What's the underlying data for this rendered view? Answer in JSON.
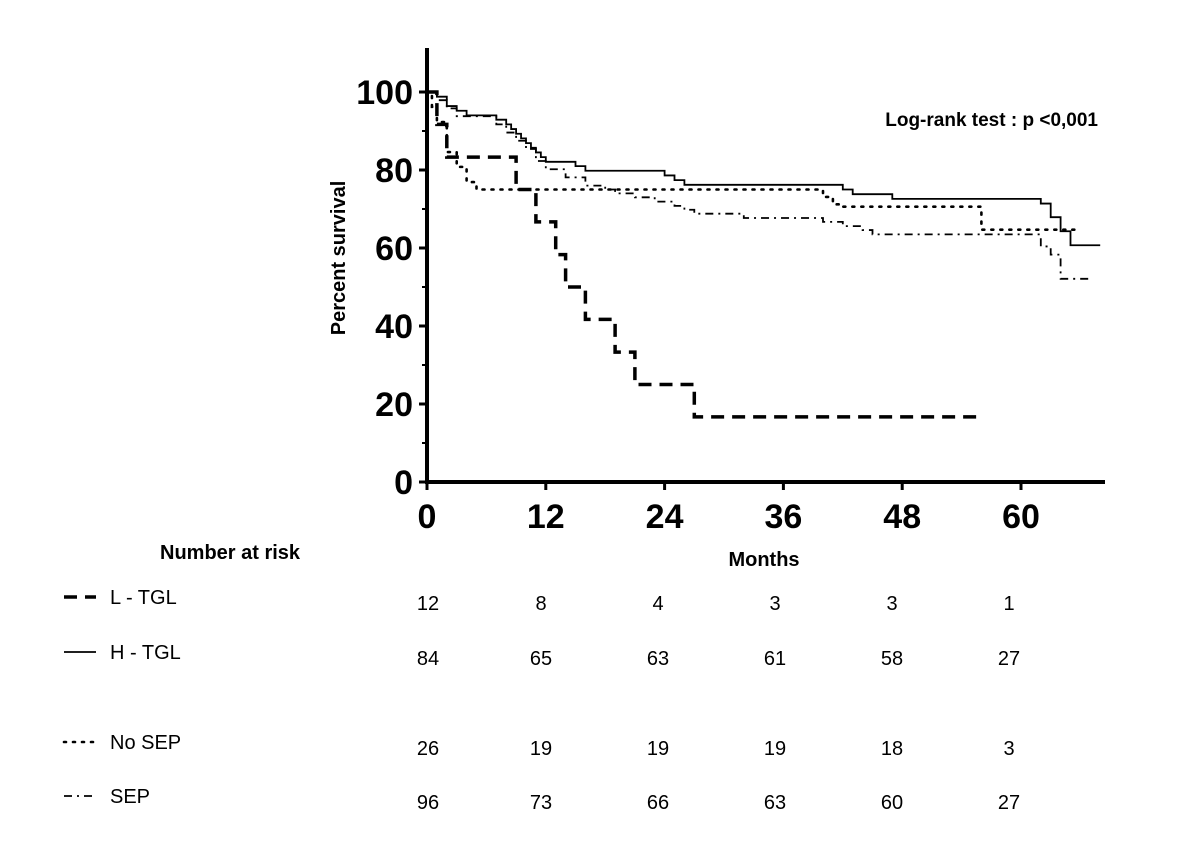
{
  "chart_data": {
    "type": "line",
    "subtype": "kaplan-meier",
    "ylabel": "Percent survival",
    "xlabel": "Months",
    "annotation": "Log-rank test : p <0,001",
    "xlim": [
      0,
      68
    ],
    "ylim": [
      0,
      110
    ],
    "x_ticks": [
      0,
      12,
      24,
      36,
      48,
      60
    ],
    "y_ticks": [
      0,
      20,
      40,
      60,
      80,
      100
    ],
    "series": [
      {
        "name": "L - TGL",
        "style": "dashed",
        "steps": [
          [
            0,
            100
          ],
          [
            1,
            91.7
          ],
          [
            2,
            83.3
          ],
          [
            9,
            75
          ],
          [
            11,
            66.7
          ],
          [
            13,
            58.3
          ],
          [
            14,
            50
          ],
          [
            16,
            41.7
          ],
          [
            19,
            33.3
          ],
          [
            21,
            25
          ],
          [
            27,
            16.7
          ]
        ],
        "end_x": 56
      },
      {
        "name": "H - TGL",
        "style": "solid",
        "steps": [
          [
            0,
            100
          ],
          [
            1,
            98.8
          ],
          [
            2,
            96.4
          ],
          [
            3,
            95.2
          ],
          [
            4,
            94
          ],
          [
            7,
            92.9
          ],
          [
            8,
            91.7
          ],
          [
            8.5,
            90.5
          ],
          [
            9,
            89.3
          ],
          [
            9.5,
            88.1
          ],
          [
            10,
            86.9
          ],
          [
            10.5,
            85.7
          ],
          [
            11,
            84.5
          ],
          [
            11.5,
            83.3
          ],
          [
            12,
            82.1
          ],
          [
            15,
            81
          ],
          [
            16,
            79.8
          ],
          [
            24,
            78.6
          ],
          [
            25,
            77.4
          ],
          [
            26,
            76.2
          ],
          [
            42,
            75
          ],
          [
            43,
            73.8
          ],
          [
            47,
            72.6
          ],
          [
            62,
            71.4
          ],
          [
            63,
            67.9
          ],
          [
            64,
            64.3
          ],
          [
            65,
            60.7
          ]
        ],
        "end_x": 68
      },
      {
        "name": "No SEP",
        "style": "dotted",
        "steps": [
          [
            0,
            100
          ],
          [
            0.5,
            96.2
          ],
          [
            1,
            92.3
          ],
          [
            2,
            84.6
          ],
          [
            3,
            80.8
          ],
          [
            4,
            76.9
          ],
          [
            5,
            75
          ],
          [
            40,
            73.1
          ],
          [
            41,
            71.2
          ],
          [
            42,
            70.6
          ],
          [
            56,
            64.7
          ]
        ],
        "end_x": 66
      },
      {
        "name": "SEP",
        "style": "dashdot",
        "steps": [
          [
            0,
            100
          ],
          [
            1,
            97.9
          ],
          [
            2,
            95.8
          ],
          [
            3,
            93.8
          ],
          [
            7,
            91.7
          ],
          [
            8,
            89.6
          ],
          [
            9,
            87.5
          ],
          [
            10,
            85.4
          ],
          [
            11,
            82.3
          ],
          [
            12,
            80.2
          ],
          [
            14,
            78.1
          ],
          [
            16,
            76
          ],
          [
            18,
            75
          ],
          [
            19,
            74
          ],
          [
            21,
            73
          ],
          [
            23,
            71.9
          ],
          [
            25,
            70.8
          ],
          [
            26,
            69.8
          ],
          [
            27,
            68.8
          ],
          [
            32,
            67.7
          ],
          [
            34,
            67.7
          ],
          [
            40,
            66.7
          ],
          [
            42,
            65.6
          ],
          [
            44,
            64.6
          ],
          [
            45,
            63.5
          ],
          [
            62,
            60.4
          ],
          [
            63,
            58.3
          ],
          [
            64,
            52.1
          ]
        ],
        "end_x": 67
      }
    ]
  },
  "risk_table": {
    "title": "Number at risk",
    "rows": [
      {
        "name": "L - TGL",
        "style": "dashed",
        "values": [
          "12",
          "8",
          "4",
          "3",
          "3",
          "1"
        ]
      },
      {
        "name": "H - TGL",
        "style": "solid",
        "values": [
          "84",
          "65",
          "63",
          "61",
          "58",
          "27"
        ]
      },
      {
        "name": "No SEP",
        "style": "dotted",
        "values": [
          "26",
          "19",
          "19",
          "19",
          "18",
          "3"
        ]
      },
      {
        "name": "SEP",
        "style": "dashdot",
        "values": [
          "96",
          "73",
          "66",
          "63",
          "60",
          "27"
        ]
      }
    ]
  }
}
